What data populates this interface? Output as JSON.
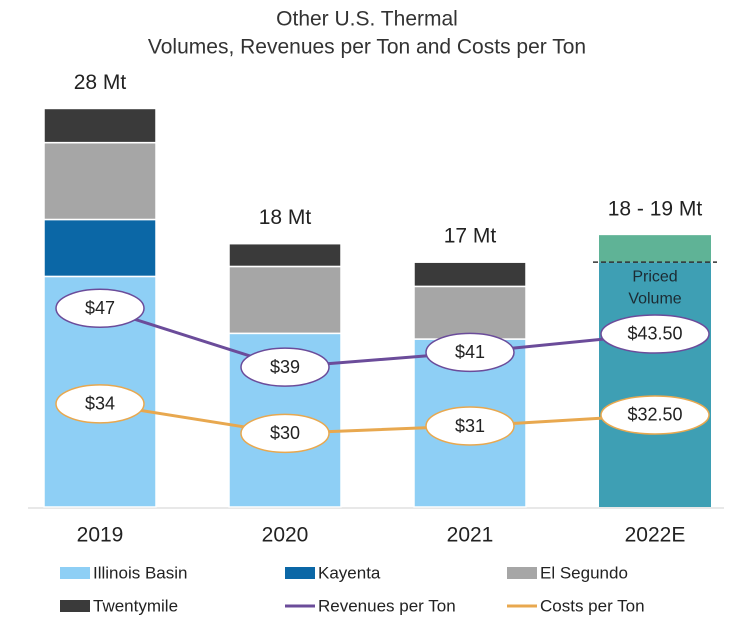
{
  "chart_data": {
    "type": "stacked_bar_line",
    "title": "Other U.S. Thermal",
    "subtitle": "Volumes, Revenues per Ton and Costs per Ton",
    "categories": [
      "2019",
      "2020",
      "2021",
      "2022E"
    ],
    "ylim": [
      0,
      30
    ],
    "y2lim": [
      20,
      78
    ],
    "series": [
      {
        "name": "Illinois Basin",
        "color": "#8ecff5",
        "values": [
          16.2,
          12.2,
          11.8,
          null
        ]
      },
      {
        "name": "Kayenta",
        "color": "#0b67a6",
        "values": [
          4.0,
          0,
          0,
          null
        ]
      },
      {
        "name": "El Segundo",
        "color": "#a6a6a6",
        "values": [
          5.4,
          4.7,
          3.7,
          null
        ]
      },
      {
        "name": "Twentymile",
        "color": "#3a3a3a",
        "values": [
          2.4,
          1.6,
          1.7,
          null
        ]
      },
      {
        "name": "Revenues per Ton",
        "type": "line",
        "axis": "y2",
        "color": "#6b4c9a",
        "values": [
          47,
          39,
          41,
          43.5
        ],
        "value_labels": [
          "$47",
          "$39",
          "$41",
          "$43.50"
        ]
      },
      {
        "name": "Costs per Ton",
        "type": "line",
        "axis": "y2",
        "color": "#e8a84f",
        "values": [
          34,
          30,
          31,
          32.5
        ],
        "value_labels": [
          "$34",
          "$30",
          "$31",
          "$32.50"
        ]
      }
    ],
    "forecast": {
      "annotation": [
        "Priced",
        "Volume"
      ],
      "priced": 17.2,
      "priced_color": "#3e9fb4",
      "unpriced": 1.9,
      "unpriced_color": "#5fb396"
    },
    "totals": [
      "28 Mt",
      "18 Mt",
      "17 Mt",
      "18 - 19 Mt"
    ]
  }
}
